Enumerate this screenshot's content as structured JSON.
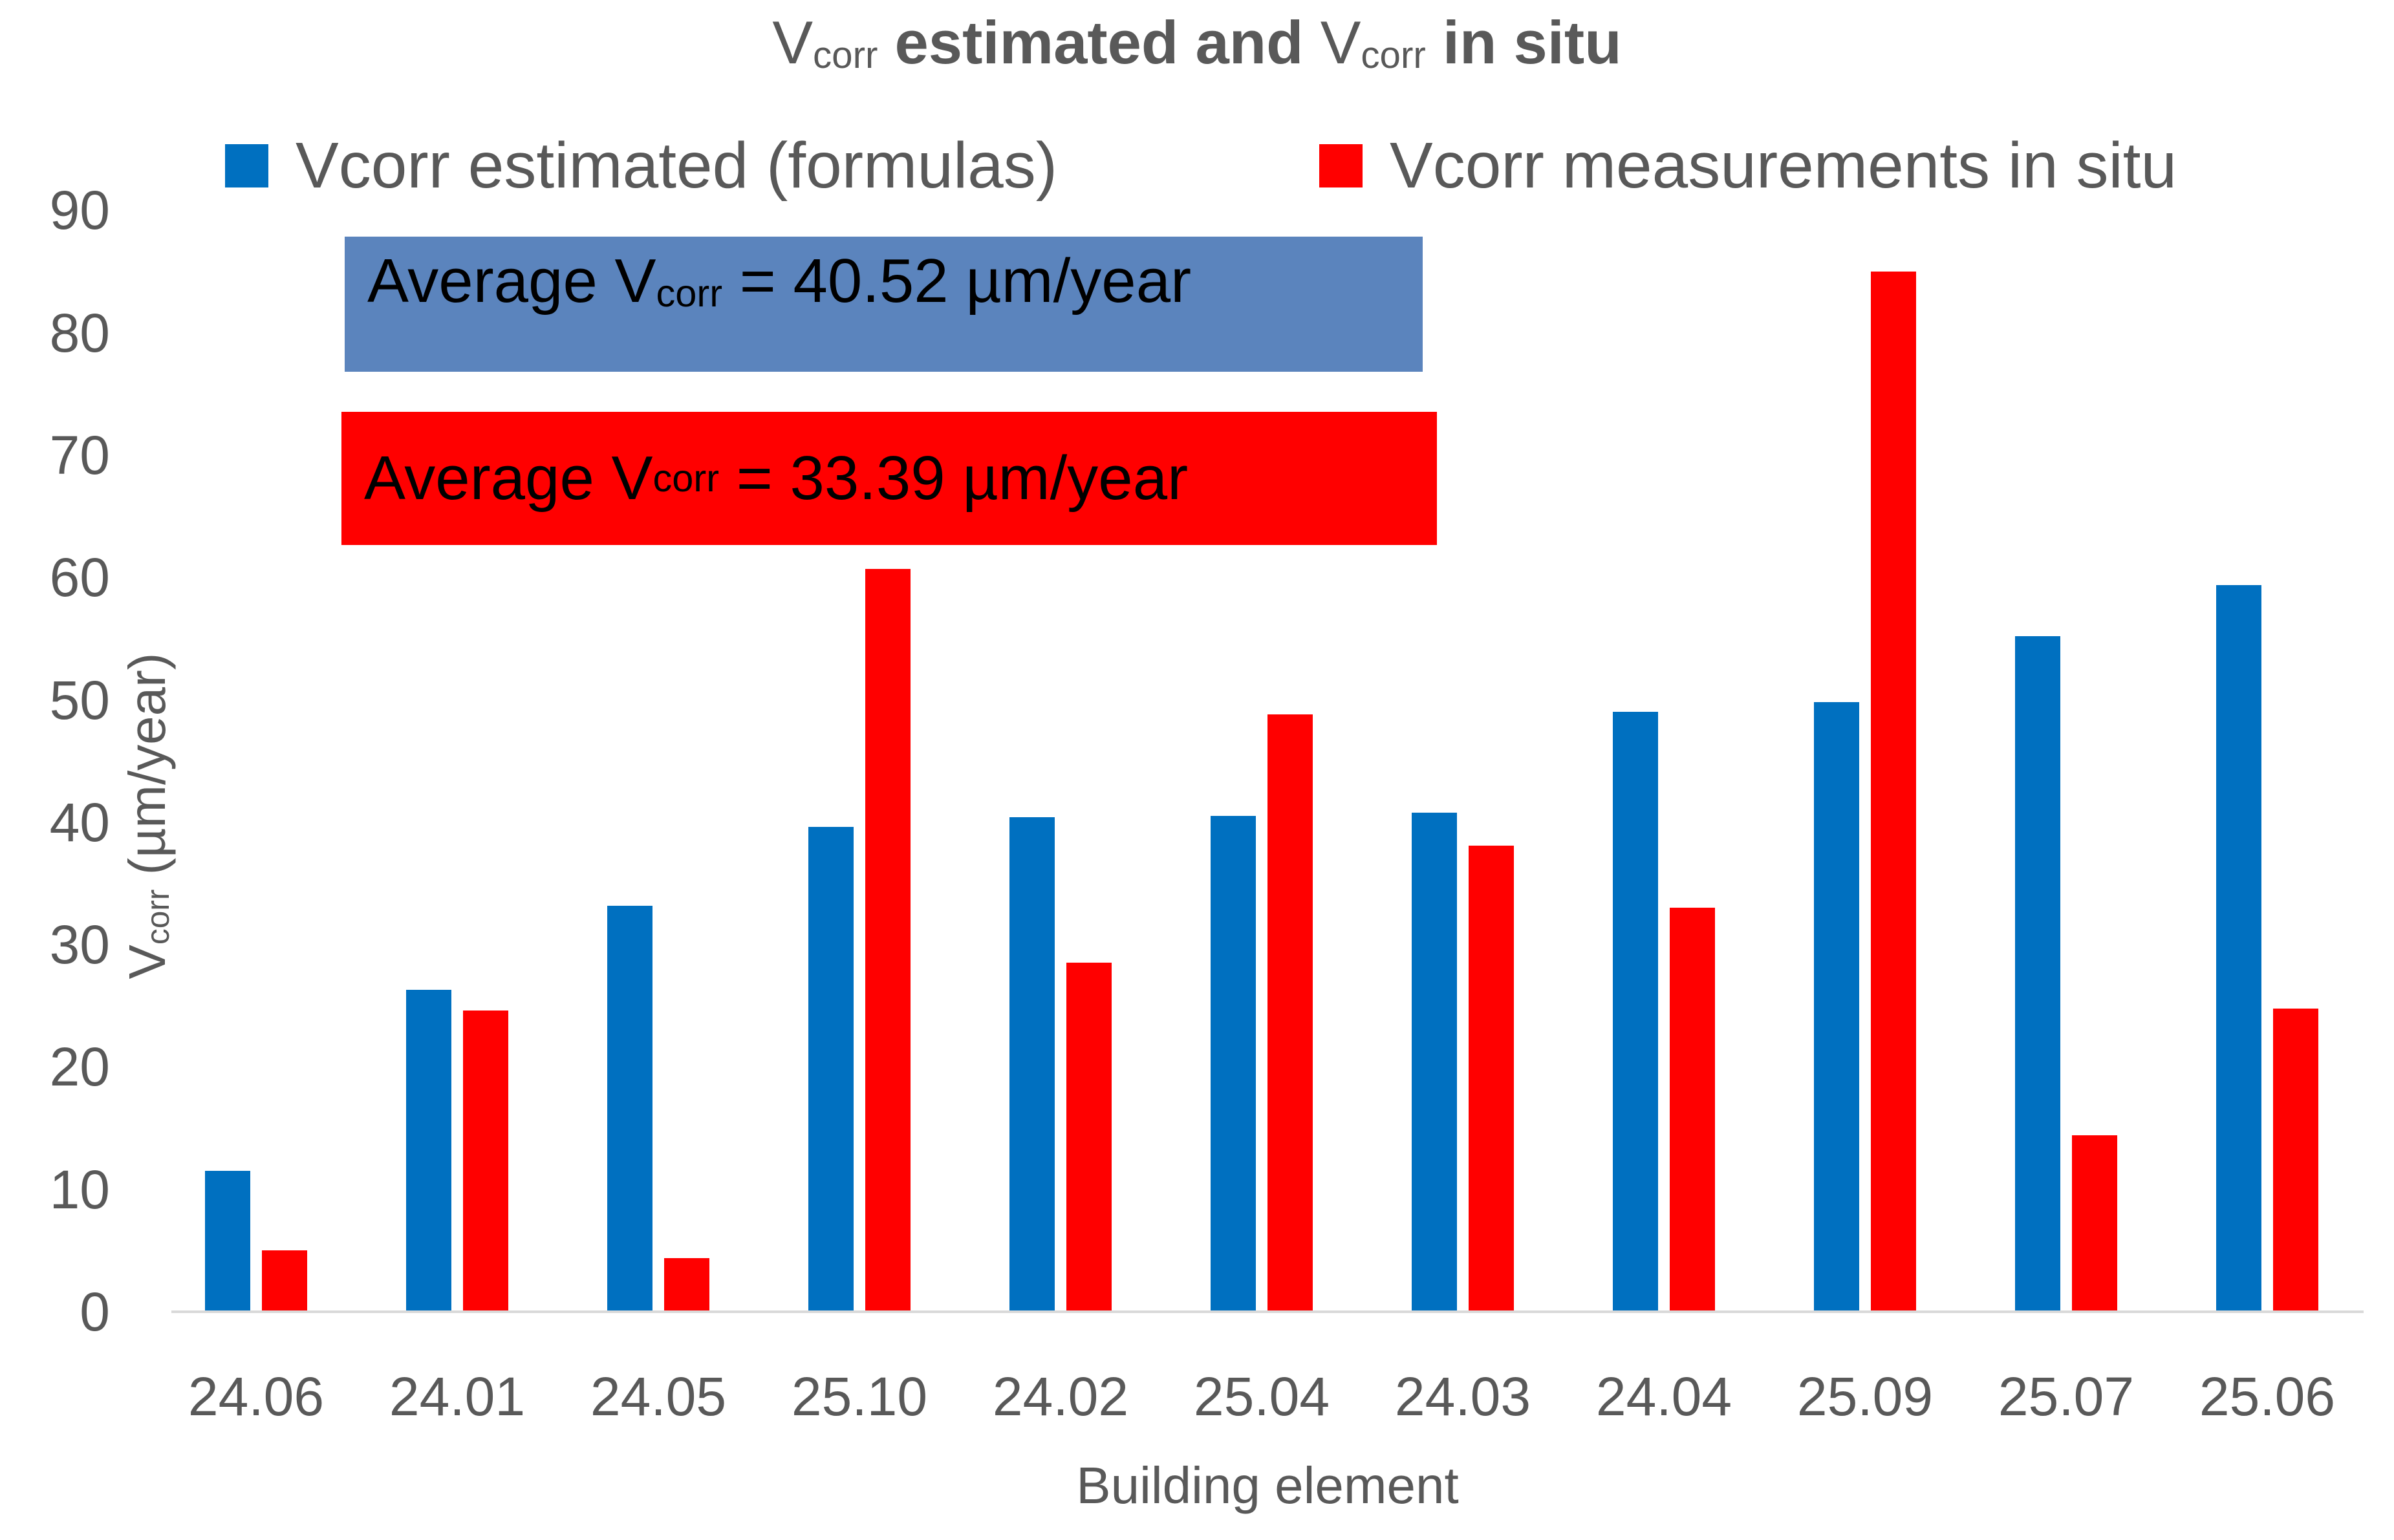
{
  "title": {
    "part1": "V",
    "sub1": "corr",
    "part2": " estimated and ",
    "part3": "V",
    "sub2": "corr",
    "part4": " in situ"
  },
  "legend": {
    "items": [
      {
        "label": "Vcorr estimated (formulas)",
        "color": "#0070C0"
      },
      {
        "label": "Vcorr measurements in situ",
        "color": "#FF0000"
      }
    ]
  },
  "annotations": [
    {
      "prefix": "Average V",
      "sub": "corr",
      "suffix": " = 40.52 µm/year",
      "bg": "#5B84BD"
    },
    {
      "prefix": "Average V",
      "sub": "corr",
      "suffix": " = 33.39 µm/year",
      "bg": "#FF0000"
    }
  ],
  "y_axis": {
    "title_pre": "V",
    "title_sub": "corr",
    "title_post": " (µm/year)"
  },
  "x_axis": {
    "title": "Building element"
  },
  "chart_data": {
    "type": "bar",
    "title": "Vcorr estimated and Vcorr in situ",
    "categories": [
      "24.06",
      "24.01",
      "24.05",
      "25.10",
      "24.02",
      "25.04",
      "24.03",
      "24.04",
      "25.09",
      "25.07",
      "25.06"
    ],
    "series": [
      {
        "name": "Vcorr estimated (formulas)",
        "color": "#0070C0",
        "values": [
          11.5,
          26.3,
          33.2,
          39.6,
          40.4,
          40.5,
          40.8,
          49.0,
          49.8,
          55.2,
          59.4
        ]
      },
      {
        "name": "Vcorr measurements in situ",
        "color": "#FF0000",
        "values": [
          5.0,
          24.6,
          4.4,
          60.7,
          28.5,
          48.8,
          38.1,
          33.0,
          85.0,
          14.4,
          24.8
        ]
      }
    ],
    "xlabel": "Building element",
    "ylabel": "Vcorr (µm/year)",
    "ylim": [
      0,
      90
    ],
    "yticks": [
      0,
      10,
      20,
      30,
      40,
      50,
      60,
      70,
      80,
      90
    ],
    "grid": false,
    "legend_position": "top",
    "annotation_texts": [
      "Average Vcorr = 40.52 µm/year",
      "Average Vcorr = 33.39 µm/year"
    ]
  }
}
